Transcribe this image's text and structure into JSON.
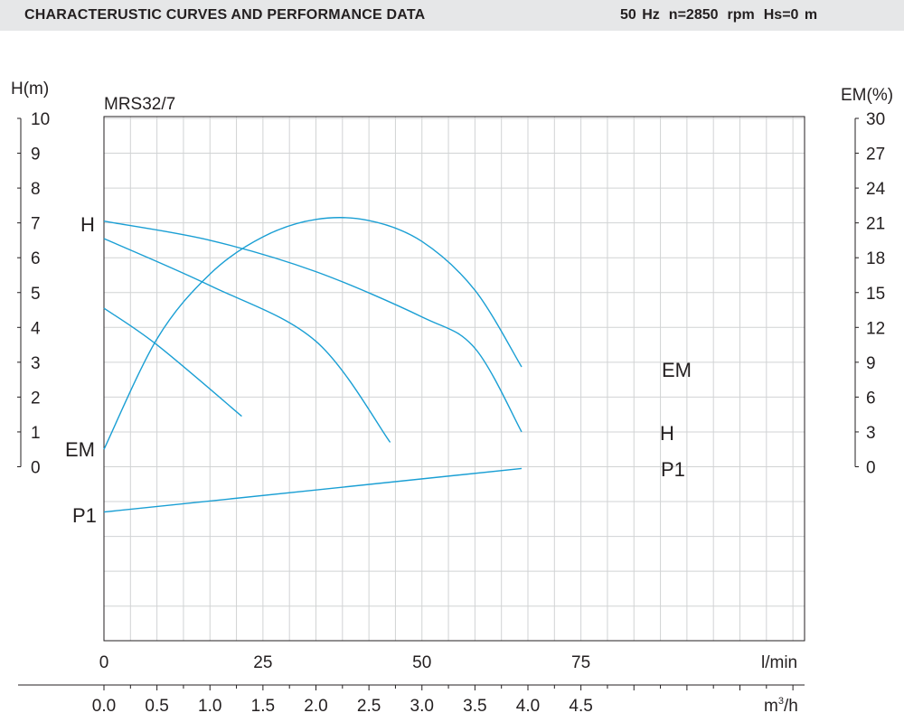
{
  "header": {
    "title": "CHARACTERUSTIC CURVES AND PERFORMANCE DATA",
    "frequency": "50 Hz",
    "speed": "n=2850",
    "speed_unit": "rpm",
    "suction_head": "Hs=0 m"
  },
  "chart_data": {
    "type": "line",
    "model_label": "MRS32/7",
    "x_axis_primary": {
      "unit_label": "l/min",
      "range": [
        0,
        75
      ],
      "ticks": [
        "0",
        "25",
        "50",
        "75"
      ],
      "tick_values": [
        0,
        25,
        50,
        75
      ]
    },
    "x_axis_secondary": {
      "unit_label": "m",
      "unit_sup": "3",
      "unit_suffix": "/h",
      "range": [
        0,
        4.5
      ],
      "ticks": [
        "0.0",
        "0.5",
        "1.0",
        "1.5",
        "2.0",
        "2.5",
        "3.0",
        "3.5",
        "4.0",
        "4.5"
      ],
      "tick_values": [
        0,
        0.5,
        1.0,
        1.5,
        2.0,
        2.5,
        3.0,
        3.5,
        4.0,
        4.5
      ]
    },
    "y_axis_left": {
      "label": "H(m)",
      "range": [
        0,
        10
      ],
      "ticks": [
        "0",
        "1",
        "2",
        "3",
        "4",
        "5",
        "6",
        "7",
        "8",
        "9",
        "10"
      ],
      "tick_values": [
        0,
        1,
        2,
        3,
        4,
        5,
        6,
        7,
        8,
        9,
        10
      ]
    },
    "y_axis_right": {
      "label": "EM(%)",
      "range": [
        0,
        30
      ],
      "ticks": [
        "0",
        "3",
        "6",
        "9",
        "12",
        "15",
        "18",
        "21",
        "24",
        "27",
        "30"
      ],
      "tick_values": [
        0,
        3,
        6,
        9,
        12,
        15,
        18,
        21,
        24,
        27,
        30
      ]
    },
    "grid": true,
    "line_color": "#1a9fd4",
    "series": [
      {
        "name": "H",
        "axis": "H",
        "points": [
          [
            0,
            7.05
          ],
          [
            1.0,
            6.5
          ],
          [
            2.0,
            5.6
          ],
          [
            3.0,
            4.3
          ],
          [
            3.5,
            3.4
          ],
          [
            3.94,
            1.0
          ]
        ]
      },
      {
        "axis": "H",
        "points": [
          [
            0,
            6.55
          ],
          [
            1.0,
            5.2
          ],
          [
            2.0,
            3.6
          ],
          [
            2.7,
            0.7
          ]
        ]
      },
      {
        "axis": "H",
        "points": [
          [
            0,
            4.55
          ],
          [
            0.5,
            3.5
          ],
          [
            1.3,
            1.45
          ]
        ]
      },
      {
        "name": "EM",
        "axis": "EM",
        "points": [
          [
            0,
            1.5
          ],
          [
            0.5,
            11.0
          ],
          [
            1.0,
            16.6
          ],
          [
            1.5,
            19.8
          ],
          [
            2.0,
            21.3
          ],
          [
            2.5,
            21.2
          ],
          [
            3.0,
            19.4
          ],
          [
            3.5,
            15.2
          ],
          [
            3.94,
            8.6
          ]
        ]
      },
      {
        "name": "P1",
        "axis": "H",
        "points": [
          [
            0,
            -1.3
          ],
          [
            3.94,
            -0.05
          ]
        ]
      }
    ],
    "labels": {
      "h_left": "H",
      "em_left": "EM",
      "p1_left": "P1",
      "em_right": "EM",
      "h_right": "H",
      "p1_right": "P1"
    }
  }
}
